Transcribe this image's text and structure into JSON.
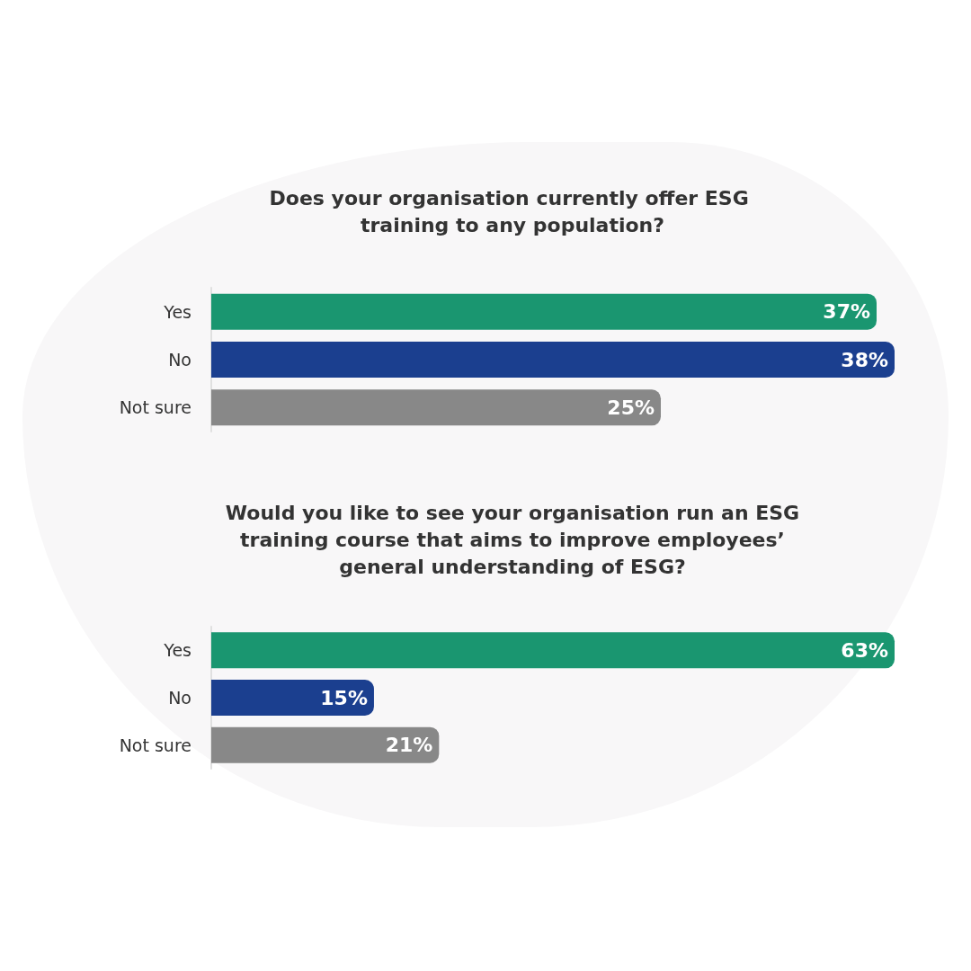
{
  "chart_data": [
    {
      "type": "bar",
      "orientation": "horizontal",
      "title": "Does your organisation currently offer ESG training to any population?",
      "categories": [
        "Yes",
        "No",
        "Not sure"
      ],
      "values": [
        37,
        38,
        25
      ],
      "value_labels": [
        "37%",
        "38%",
        "25%"
      ],
      "colors": [
        "#1a9670",
        "#1b3f8f",
        "#888888"
      ],
      "tick_labels": "y"
    },
    {
      "type": "bar",
      "orientation": "horizontal",
      "title": "Would you like to see your organisation run an ESG training course that aims to improve employees’ general understanding of ESG?",
      "categories": [
        "Yes",
        "No",
        "Not sure"
      ],
      "values": [
        63,
        15,
        21
      ],
      "value_labels": [
        "63%",
        "15%",
        "21%"
      ],
      "colors": [
        "#1a9670",
        "#1b3f8f",
        "#888888"
      ],
      "tick_labels": "y"
    }
  ]
}
